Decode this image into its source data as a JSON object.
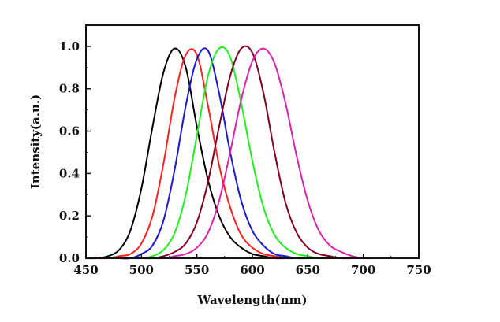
{
  "chart_data": {
    "type": "line",
    "title": "",
    "xlabel": "Wavelength(nm)",
    "ylabel": "Intensity(a.u.)",
    "xlim": [
      450,
      750
    ],
    "ylim": [
      0.0,
      1.1
    ],
    "x_ticks": [
      "450",
      "500",
      "550",
      "600",
      "650",
      "700",
      "750"
    ],
    "y_ticks": [
      "0.0",
      "0.2",
      "0.4",
      "0.6",
      "0.8",
      "1.0"
    ],
    "grid": false,
    "legend": "none",
    "x": [
      450,
      460,
      470,
      480,
      490,
      500,
      510,
      520,
      530,
      540,
      550,
      560,
      570,
      580,
      590,
      600,
      610,
      620,
      630,
      640,
      650,
      660,
      670,
      680,
      690,
      700,
      710,
      720,
      730,
      740,
      750
    ],
    "series": [
      {
        "color": "#000000",
        "values": [
          0.0,
          0.0,
          0.01,
          0.04,
          0.13,
          0.33,
          0.62,
          0.88,
          0.99,
          0.9,
          0.62,
          0.37,
          0.2,
          0.1,
          0.05,
          0.02,
          0.01,
          0.0,
          0.0,
          0.0,
          0.0,
          0.0,
          0.0,
          0.0,
          0.0,
          0.0,
          0.0,
          0.0,
          0.0,
          0.0,
          0.0
        ]
      },
      {
        "color": "#ff2020",
        "values": [
          0.0,
          0.0,
          0.0,
          0.01,
          0.02,
          0.07,
          0.2,
          0.45,
          0.76,
          0.96,
          0.96,
          0.72,
          0.44,
          0.24,
          0.11,
          0.05,
          0.02,
          0.01,
          0.0,
          0.0,
          0.0,
          0.0,
          0.0,
          0.0,
          0.0,
          0.0,
          0.0,
          0.0,
          0.0,
          0.0,
          0.0
        ]
      },
      {
        "color": "#1a1acc",
        "values": [
          0.0,
          0.0,
          0.0,
          0.0,
          0.0,
          0.02,
          0.06,
          0.18,
          0.42,
          0.72,
          0.94,
          0.98,
          0.78,
          0.5,
          0.27,
          0.13,
          0.06,
          0.02,
          0.01,
          0.0,
          0.0,
          0.0,
          0.0,
          0.0,
          0.0,
          0.0,
          0.0,
          0.0,
          0.0,
          0.0,
          0.0
        ]
      },
      {
        "color": "#22ee22",
        "values": [
          0.0,
          0.0,
          0.0,
          0.0,
          0.0,
          0.0,
          0.01,
          0.04,
          0.12,
          0.3,
          0.58,
          0.86,
          0.99,
          0.95,
          0.73,
          0.46,
          0.24,
          0.11,
          0.05,
          0.02,
          0.01,
          0.0,
          0.0,
          0.0,
          0.0,
          0.0,
          0.0,
          0.0,
          0.0,
          0.0,
          0.0
        ]
      },
      {
        "color": "#800020",
        "values": [
          0.0,
          0.0,
          0.0,
          0.0,
          0.0,
          0.0,
          0.0,
          0.01,
          0.03,
          0.07,
          0.17,
          0.36,
          0.62,
          0.86,
          0.99,
          0.97,
          0.78,
          0.5,
          0.26,
          0.12,
          0.05,
          0.02,
          0.01,
          0.0,
          0.0,
          0.0,
          0.0,
          0.0,
          0.0,
          0.0,
          0.0
        ]
      },
      {
        "color": "#dd22aa",
        "values": [
          0.0,
          0.0,
          0.0,
          0.0,
          0.0,
          0.0,
          0.0,
          0.0,
          0.01,
          0.02,
          0.05,
          0.12,
          0.27,
          0.5,
          0.75,
          0.93,
          0.99,
          0.92,
          0.73,
          0.48,
          0.27,
          0.13,
          0.06,
          0.03,
          0.01,
          0.0,
          0.0,
          0.0,
          0.0,
          0.0,
          0.0
        ]
      }
    ]
  }
}
